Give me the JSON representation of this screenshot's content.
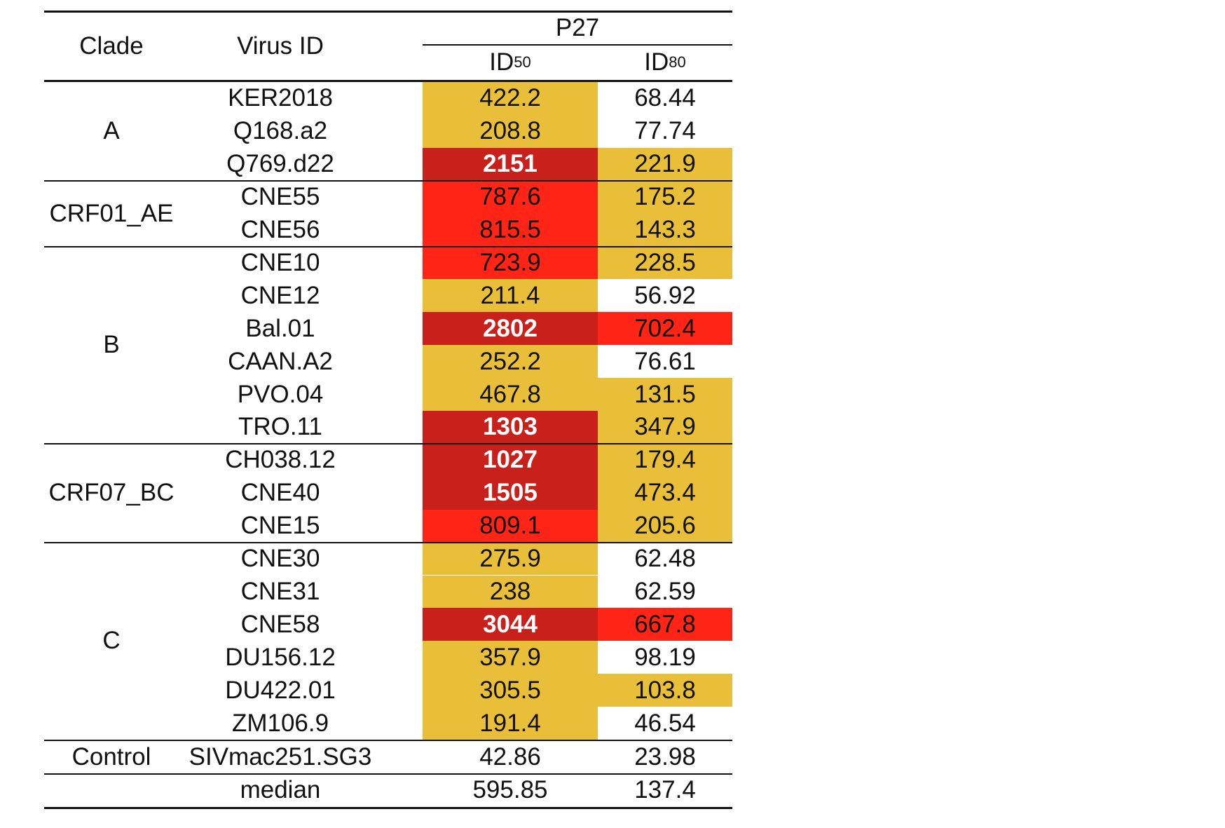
{
  "headers": {
    "clade": "Clade",
    "virus_id": "Virus ID",
    "group": "P27",
    "id50_base": "ID",
    "id50_sub": "50",
    "id80_base": "ID",
    "id80_sub": "80"
  },
  "colors": {
    "mid": "#e9be38",
    "high": "#ff2516",
    "top": "#c8201a",
    "none": "#ffffff"
  },
  "groups": [
    {
      "clade": "A",
      "rows": 3
    },
    {
      "clade": "CRF01_AE",
      "rows": 2
    },
    {
      "clade": "B",
      "rows": 6
    },
    {
      "clade": "CRF07_BC",
      "rows": 3
    },
    {
      "clade": "C",
      "rows": 6
    }
  ],
  "rows": [
    {
      "virus": "KER2018",
      "id50": "422.2",
      "id50_level": "mid",
      "id80": "68.44",
      "id80_level": "none"
    },
    {
      "virus": "Q168.a2",
      "id50": "208.8",
      "id50_level": "mid",
      "id80": "77.74",
      "id80_level": "none"
    },
    {
      "virus": "Q769.d22",
      "id50": "2151",
      "id50_level": "top",
      "id80": "221.9",
      "id80_level": "mid"
    },
    {
      "virus": "CNE55",
      "id50": "787.6",
      "id50_level": "high",
      "id80": "175.2",
      "id80_level": "mid"
    },
    {
      "virus": "CNE56",
      "id50": "815.5",
      "id50_level": "high",
      "id80": "143.3",
      "id80_level": "mid"
    },
    {
      "virus": "CNE10",
      "id50": "723.9",
      "id50_level": "high",
      "id80": "228.5",
      "id80_level": "mid"
    },
    {
      "virus": "CNE12",
      "id50": "211.4",
      "id50_level": "mid",
      "id80": "56.92",
      "id80_level": "none"
    },
    {
      "virus": "Bal.01",
      "id50": "2802",
      "id50_level": "top",
      "id80": "702.4",
      "id80_level": "high"
    },
    {
      "virus": "CAAN.A2",
      "id50": "252.2",
      "id50_level": "mid",
      "id80": "76.61",
      "id80_level": "none"
    },
    {
      "virus": "PVO.04",
      "id50": "467.8",
      "id50_level": "mid",
      "id80": "131.5",
      "id80_level": "mid"
    },
    {
      "virus": "TRO.11",
      "id50": "1303",
      "id50_level": "top",
      "id80": "347.9",
      "id80_level": "mid"
    },
    {
      "virus": "CH038.12",
      "id50": "1027",
      "id50_level": "top",
      "id80": "179.4",
      "id80_level": "mid"
    },
    {
      "virus": "CNE40",
      "id50": "1505",
      "id50_level": "top",
      "id80": "473.4",
      "id80_level": "mid"
    },
    {
      "virus": "CNE15",
      "id50": "809.1",
      "id50_level": "high",
      "id80": "205.6",
      "id80_level": "mid"
    },
    {
      "virus": "CNE30",
      "id50": "275.9",
      "id50_level": "mid",
      "id80": "62.48",
      "id80_level": "none"
    },
    {
      "virus": "CNE31",
      "id50": "238",
      "id50_level": "mid",
      "id80": "62.59",
      "id80_level": "none"
    },
    {
      "virus": "CNE58",
      "id50": "3044",
      "id50_level": "top",
      "id80": "667.8",
      "id80_level": "high"
    },
    {
      "virus": "DU156.12",
      "id50": "357.9",
      "id50_level": "mid",
      "id80": "98.19",
      "id80_level": "none"
    },
    {
      "virus": "DU422.01",
      "id50": "305.5",
      "id50_level": "mid",
      "id80": "103.8",
      "id80_level": "mid"
    },
    {
      "virus": "ZM106.9",
      "id50": "191.4",
      "id50_level": "mid",
      "id80": "46.54",
      "id80_level": "none"
    }
  ],
  "control": {
    "clade": "Control",
    "virus": "SIVmac251.SG3",
    "id50": "42.86",
    "id80": "23.98"
  },
  "median": {
    "label": "median",
    "id50": "595.85",
    "id80": "137.4"
  }
}
